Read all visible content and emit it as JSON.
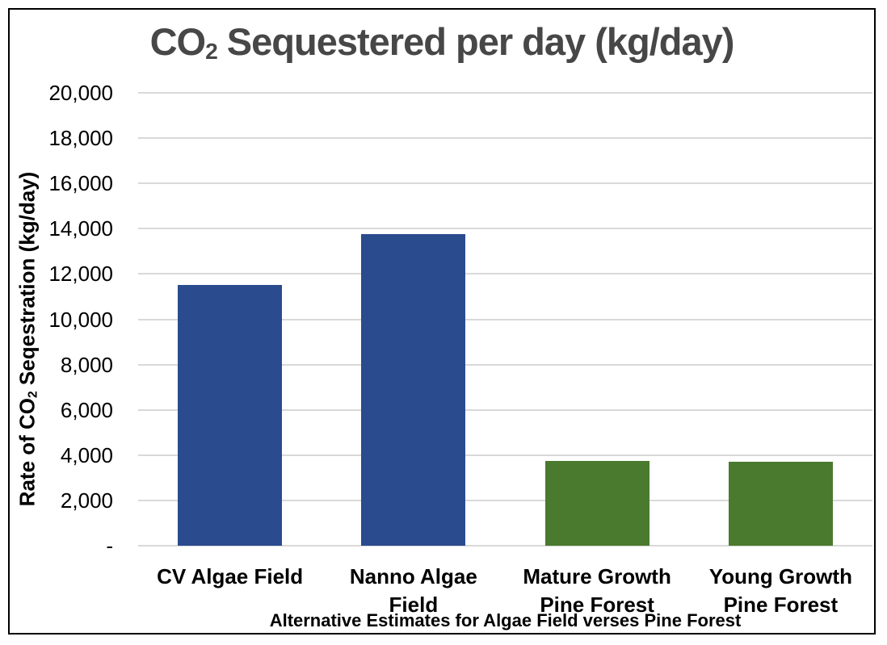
{
  "chart_data": {
    "type": "bar",
    "title": {
      "pre": "CO",
      "sub": "2",
      "post": " Sequestered per day (kg/day)"
    },
    "ylabel": {
      "pre": "Rate of CO",
      "sub": "2",
      "post": " Seqestration (kg/day)"
    },
    "xlabel": "Alternative Estimates for Algae Field verses Pine Forest",
    "categories": [
      "CV  Algae Field",
      "Nanno Algae\nField",
      "Mature Growth\nPine Forest",
      "Young Growth\nPine Forest"
    ],
    "values": [
      11500,
      13750,
      3750,
      3700
    ],
    "bar_colors": [
      "#2a4b8d",
      "#2a4b8d",
      "#4a7a2e",
      "#4a7a2e"
    ],
    "ylim": [
      0,
      20000
    ],
    "ytick_step": 2000,
    "ytick_labels_top_to_bottom": [
      "20,000",
      "18,000",
      "16,000",
      "14,000",
      "12,000",
      "10,000",
      "8,000",
      "6,000",
      "4,000",
      "2,000",
      "-"
    ],
    "grid": true,
    "legend_position": "none"
  },
  "colors": {
    "bar_blue": "#2a4b8d",
    "bar_green": "#4a7a2e",
    "gridline": "#d9d9d9",
    "title_text": "#474747",
    "axis_text": "#000000",
    "border": "#000000"
  }
}
